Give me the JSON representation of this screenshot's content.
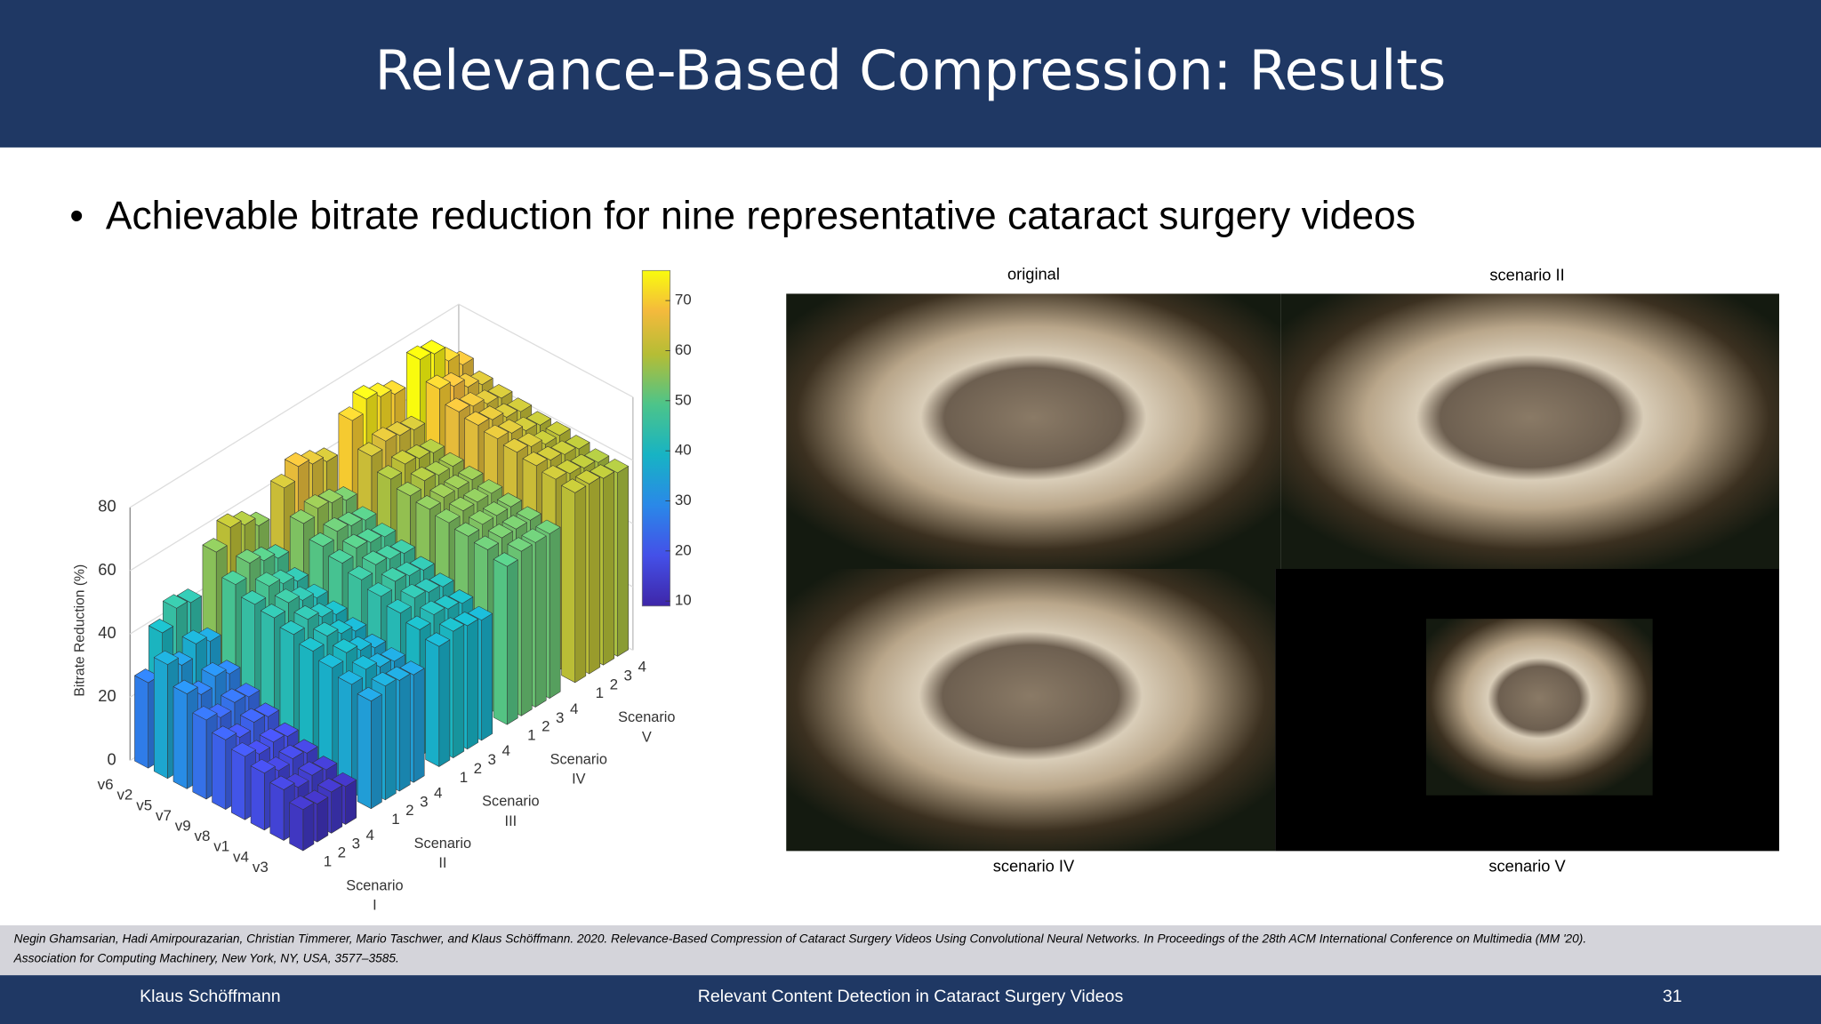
{
  "header": {
    "title": "Relevance-Based Compression: Results"
  },
  "bullet": "Achievable bitrate reduction for nine representative cataract surgery videos",
  "chart": {
    "type": "bar3d",
    "ylabel": "Bitrate Reduction (%)",
    "zlim": [
      0,
      80
    ],
    "zticks": [
      0,
      20,
      40,
      60,
      80
    ],
    "clim": [
      9,
      76
    ],
    "cticks": [
      10,
      20,
      30,
      40,
      50,
      60,
      70
    ],
    "videos": [
      "v6",
      "v2",
      "v5",
      "v7",
      "v9",
      "v8",
      "v1",
      "v4",
      "v3"
    ],
    "levels": [
      "1",
      "2",
      "3",
      "4"
    ],
    "scenarios": [
      [
        "Scenario",
        "I"
      ],
      [
        "Scenario",
        "II"
      ],
      [
        "Scenario",
        "III"
      ],
      [
        "Scenario",
        "IV"
      ],
      [
        "Scenario",
        "V"
      ]
    ],
    "values": [
      [
        [
          27,
          36,
          30,
          25,
          22,
          20,
          18,
          16,
          13
        ],
        [
          40,
          33,
          27,
          23,
          20,
          18,
          16,
          14,
          12
        ],
        [
          45,
          37,
          30,
          25,
          22,
          19,
          17,
          15,
          13
        ],
        [
          44,
          35,
          28,
          24,
          21,
          18,
          16,
          14,
          12
        ]
      ],
      [
        [
          55,
          48,
          45,
          44,
          42,
          40,
          38,
          36,
          34
        ],
        [
          60,
          52,
          48,
          46,
          44,
          42,
          40,
          38,
          36
        ],
        [
          58,
          50,
          46,
          44,
          42,
          40,
          38,
          36,
          35
        ],
        [
          55,
          48,
          44,
          42,
          40,
          38,
          36,
          35,
          34
        ]
      ],
      [
        [
          62,
          54,
          50,
          48,
          46,
          44,
          42,
          40,
          38
        ],
        [
          66,
          56,
          52,
          50,
          48,
          46,
          44,
          42,
          40
        ],
        [
          64,
          55,
          51,
          49,
          47,
          45,
          43,
          41,
          39
        ],
        [
          62,
          53,
          50,
          48,
          46,
          44,
          42,
          40,
          38
        ]
      ],
      [
        [
          70,
          62,
          58,
          56,
          55,
          54,
          53,
          52,
          50
        ],
        [
          74,
          64,
          60,
          58,
          56,
          55,
          54,
          53,
          52
        ],
        [
          72,
          63,
          59,
          57,
          56,
          55,
          54,
          53,
          52
        ],
        [
          70,
          62,
          58,
          57,
          56,
          55,
          54,
          53,
          52
        ]
      ],
      [
        [
          76,
          70,
          66,
          65,
          64,
          63,
          62,
          61,
          60
        ],
        [
          75,
          68,
          65,
          64,
          63,
          62,
          61,
          60,
          60
        ],
        [
          70,
          65,
          63,
          62,
          61,
          60,
          60,
          59,
          59
        ],
        [
          66,
          63,
          62,
          61,
          60,
          60,
          59,
          58,
          58
        ]
      ]
    ]
  },
  "images": {
    "captions": [
      "original",
      "scenario II",
      "scenario IV",
      "scenario V"
    ]
  },
  "citation": [
    "Negin Ghamsarian, Hadi Amirpourazarian, Christian Timmerer, Mario Taschwer, and Klaus Schöffmann. 2020. Relevance-Based Compression of Cataract Surgery Videos Using Convolutional Neural Networks. In Proceedings of the 28th ACM International Conference on Multimedia (MM '20).",
    "Association for Computing Machinery, New York, NY, USA, 3577–3585."
  ],
  "footer": {
    "author": "Klaus Schöffmann",
    "title": "Relevant Content Detection in Cataract Surgery Videos",
    "page": "31"
  }
}
